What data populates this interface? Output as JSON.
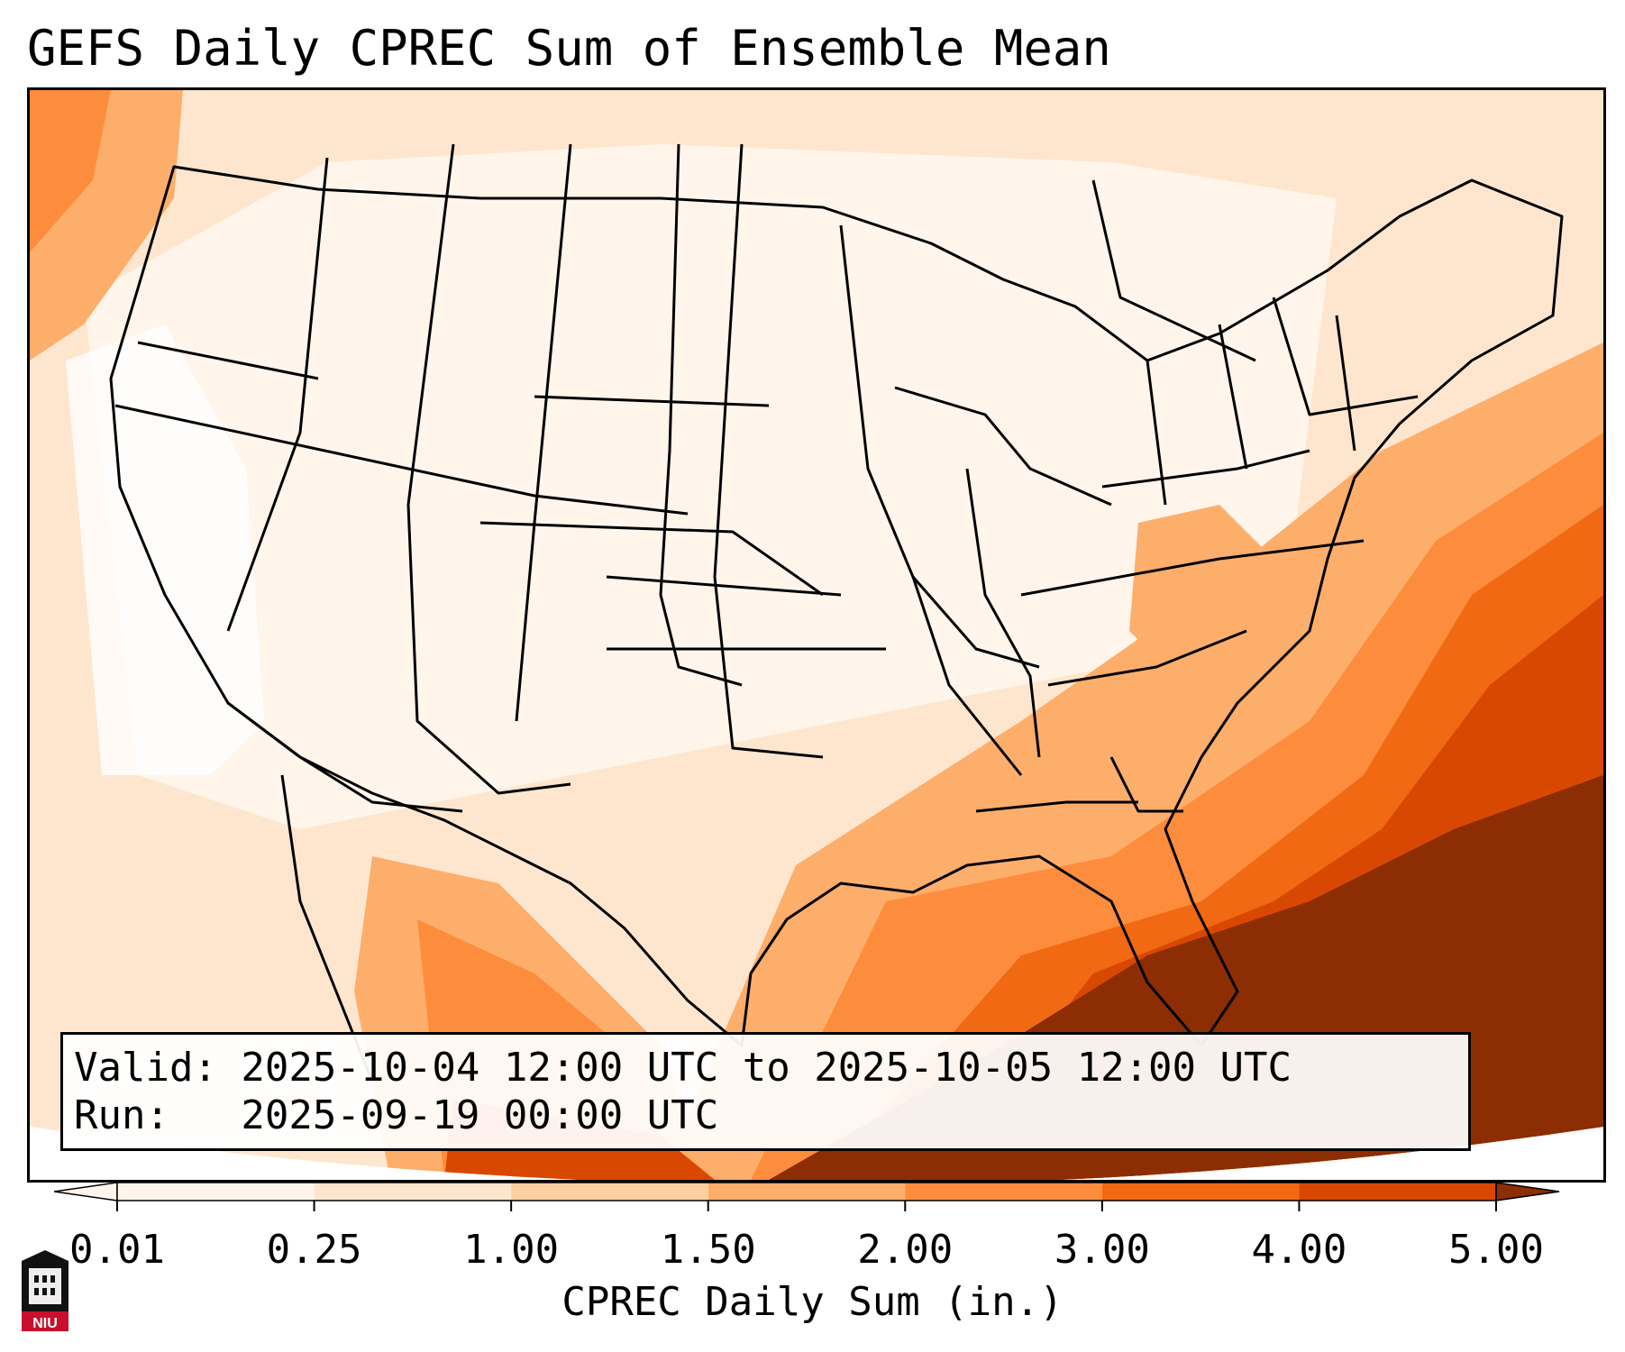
{
  "title": "GEFS Daily CPREC Sum of Ensemble Mean",
  "info": {
    "valid_line": "Valid: 2025-10-04 12:00 UTC to 2025-10-05 12:00 UTC",
    "run_line": "Run:   2025-09-19 00:00 UTC"
  },
  "colorbar": {
    "label": "CPREC Daily Sum (in.)",
    "ticks": [
      "0.01",
      "0.25",
      "1.00",
      "1.50",
      "2.00",
      "3.00",
      "4.00",
      "5.00"
    ],
    "colors": [
      "#fff5eb",
      "#fee6ce",
      "#fdd0a2",
      "#fdae6b",
      "#fd8d3c",
      "#f16913",
      "#d94801",
      "#8c2d04"
    ],
    "extend": "both"
  },
  "logo": {
    "text": "NIU",
    "icon": "niu-logo-icon"
  },
  "map": {
    "region": "Contiguous United States",
    "legend_placement": "bottom",
    "max_color": "#8c2d04",
    "min_color": "#fff5eb"
  }
}
